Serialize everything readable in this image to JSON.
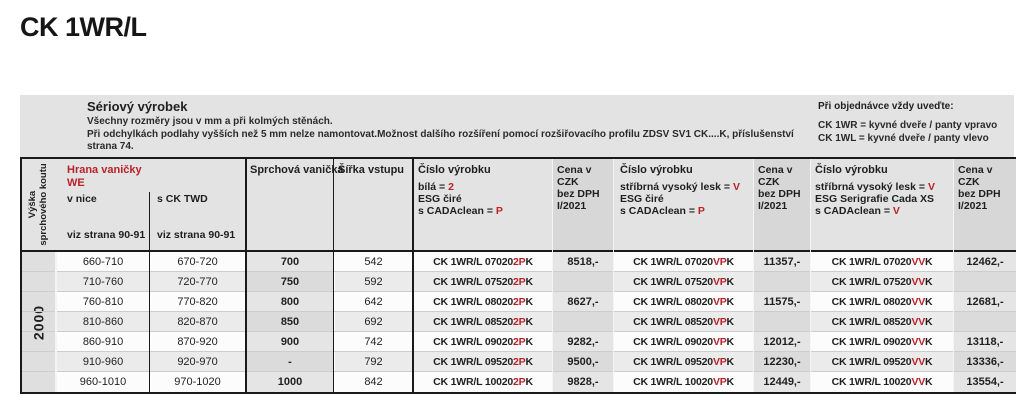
{
  "page": {
    "title": "CK 1WR/L"
  },
  "banner": {
    "product_heading": "Sériový výrobek",
    "note_line1": "Všechny rozměry jsou v mm a při kolmých stěnách.",
    "note_line2": "Při odchylkách podlahy vyšších než 5 mm nelze namontovat.Možnost dalšího rozšíření pomocí rozšiřovacího profilu ZDSV SV1 CK....K, příslušenství",
    "note_line3": "strana 74.",
    "order": {
      "heading": "Při objednávce vždy uveďte:",
      "line1": "CK 1WR = kyvné dveře / panty vpravo",
      "line2": "CK 1WL = kyvné dveře / panty vlevo"
    }
  },
  "table": {
    "rotated_header": [
      "Výška",
      "sprchového koutu"
    ],
    "height_value": "2000",
    "group": {
      "title_line1": "Hrana vaničky",
      "title_line2": "WE",
      "sub1": "v nice",
      "sub2": "s CK TWD",
      "ref1": "viz strana 90-91",
      "ref2": "viz strana 90-91"
    },
    "tray_header": "Sprchová vanička",
    "entry_header": "Šířka vstupu",
    "price_header": [
      "Cena v CZK",
      "bez DPH",
      "I/2021"
    ],
    "product_headers": {
      "white": {
        "title": "Číslo výrobku",
        "lines": [
          {
            "pre": "bílá = ",
            "red": "2"
          },
          {
            "pre": "ESG čiré",
            "red": ""
          },
          {
            "pre": "s CADAclean = ",
            "red": "P"
          }
        ]
      },
      "silver": {
        "title": "Číslo výrobku",
        "lines": [
          {
            "pre": "stříbrná vysoký lesk = ",
            "red": "V"
          },
          {
            "pre": "ESG čiré",
            "red": ""
          },
          {
            "pre": "s CADAclean = ",
            "red": "P"
          }
        ]
      },
      "serigraphy": {
        "title": "Číslo výrobku",
        "lines": [
          {
            "pre": "stříbrná vysoký lesk = ",
            "red": "V"
          },
          {
            "pre": "ESG Serigrafie Cada XS",
            "red": ""
          },
          {
            "pre": "s CADAclean = ",
            "red": "V"
          }
        ]
      }
    },
    "rows": [
      {
        "v_nice": "660-710",
        "s_ck_twd": "670-720",
        "tray": "700",
        "entry": "542",
        "p1": {
          "pre": "CK 1WR/L 07020 ",
          "red": "2P",
          "suf": "K"
        },
        "c1": "8518,-",
        "p2": {
          "pre": "CK 1WR/L 07020 ",
          "red": "VP",
          "suf": "K"
        },
        "c2": "11357,-",
        "p3": {
          "pre": "CK 1WR/L 07020 ",
          "red": "VV",
          "suf": "K"
        },
        "c3": "12462,-"
      },
      {
        "v_nice": "710-760",
        "s_ck_twd": "720-770",
        "tray": "750",
        "entry": "592",
        "p1": {
          "pre": "CK 1WR/L 07520 ",
          "red": "2P",
          "suf": "K"
        },
        "c1": "",
        "p2": {
          "pre": "CK 1WR/L 07520 ",
          "red": "VP",
          "suf": "K"
        },
        "c2": "",
        "p3": {
          "pre": "CK 1WR/L 07520 ",
          "red": "VV",
          "suf": "K"
        },
        "c3": ""
      },
      {
        "v_nice": "760-810",
        "s_ck_twd": "770-820",
        "tray": "800",
        "entry": "642",
        "p1": {
          "pre": "CK 1WR/L 08020 ",
          "red": "2P",
          "suf": "K"
        },
        "c1": "8627,-",
        "p2": {
          "pre": "CK 1WR/L 08020 ",
          "red": "VP",
          "suf": "K"
        },
        "c2": "11575,-",
        "p3": {
          "pre": "CK 1WR/L 08020 ",
          "red": "VV",
          "suf": "K"
        },
        "c3": "12681,-"
      },
      {
        "v_nice": "810-860",
        "s_ck_twd": "820-870",
        "tray": "850",
        "entry": "692",
        "p1": {
          "pre": "CK 1WR/L 08520 ",
          "red": "2P",
          "suf": "K"
        },
        "c1": "",
        "p2": {
          "pre": "CK 1WR/L 08520 ",
          "red": "VP",
          "suf": "K"
        },
        "c2": "",
        "p3": {
          "pre": "CK 1WR/L 08520 ",
          "red": "VV",
          "suf": "K"
        },
        "c3": ""
      },
      {
        "v_nice": "860-910",
        "s_ck_twd": "870-920",
        "tray": "900",
        "entry": "742",
        "p1": {
          "pre": "CK 1WR/L 09020 ",
          "red": "2P",
          "suf": "K"
        },
        "c1": "9282,-",
        "p2": {
          "pre": "CK 1WR/L 09020 ",
          "red": "VP",
          "suf": "K"
        },
        "c2": "12012,-",
        "p3": {
          "pre": "CK 1WR/L 09020 ",
          "red": "VV",
          "suf": "K"
        },
        "c3": "13118,-"
      },
      {
        "v_nice": "910-960",
        "s_ck_twd": "920-970",
        "tray": "-",
        "entry": "792",
        "p1": {
          "pre": "CK 1WR/L 09520 ",
          "red": "2P",
          "suf": "K"
        },
        "c1": "9500,-",
        "p2": {
          "pre": "CK 1WR/L 09520 ",
          "red": "VP",
          "suf": "K"
        },
        "c2": "12230,-",
        "p3": {
          "pre": "CK 1WR/L 09520 ",
          "red": "VV",
          "suf": "K"
        },
        "c3": "13336,-"
      },
      {
        "v_nice": "960-1010",
        "s_ck_twd": "970-1020",
        "tray": "1000",
        "entry": "842",
        "p1": {
          "pre": "CK 1WR/L 10020 ",
          "red": "2P",
          "suf": "K"
        },
        "c1": "9828,-",
        "p2": {
          "pre": "CK 1WR/L 10020 ",
          "red": "VP",
          "suf": "K"
        },
        "c2": "12449,-",
        "p3": {
          "pre": "CK 1WR/L 10020 ",
          "red": "VV",
          "suf": "K"
        },
        "c3": "13554,-"
      }
    ]
  },
  "colors": {
    "accent_red": "#b8232a",
    "band_gray": "#e3e3e3",
    "shade_gray": "#dbdbdb",
    "rule_black": "#1a1a1a"
  }
}
